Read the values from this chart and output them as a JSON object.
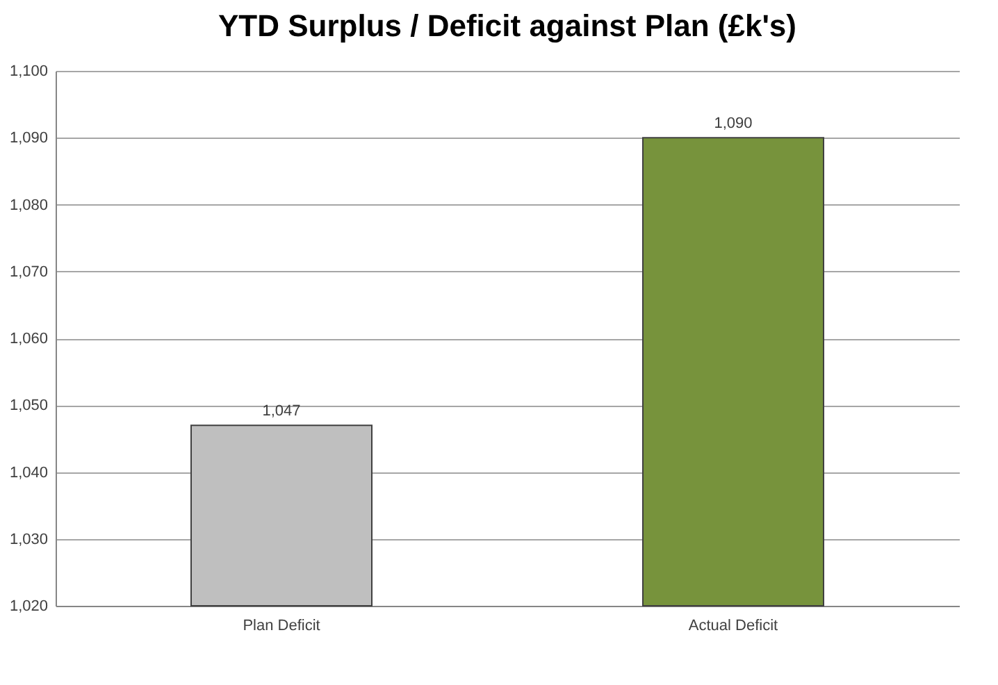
{
  "chart_data": {
    "type": "bar",
    "title": "YTD Surplus / Deficit against Plan (£k's)",
    "categories": [
      "Plan Deficit",
      "Actual Deficit"
    ],
    "values": [
      1047,
      1090
    ],
    "colors": [
      "#bfbfbf",
      "#77933c"
    ],
    "value_labels": [
      "1,047",
      "1,090"
    ],
    "ylim": [
      1020,
      1100
    ],
    "yticks": [
      {
        "value": 1020,
        "label": "1,020"
      },
      {
        "value": 1030,
        "label": "1,030"
      },
      {
        "value": 1040,
        "label": "1,040"
      },
      {
        "value": 1050,
        "label": "1,050"
      },
      {
        "value": 1060,
        "label": "1,060"
      },
      {
        "value": 1070,
        "label": "1,070"
      },
      {
        "value": 1080,
        "label": "1,080"
      },
      {
        "value": 1090,
        "label": "1,090"
      },
      {
        "value": 1100,
        "label": "1,100"
      }
    ],
    "grid": true
  }
}
